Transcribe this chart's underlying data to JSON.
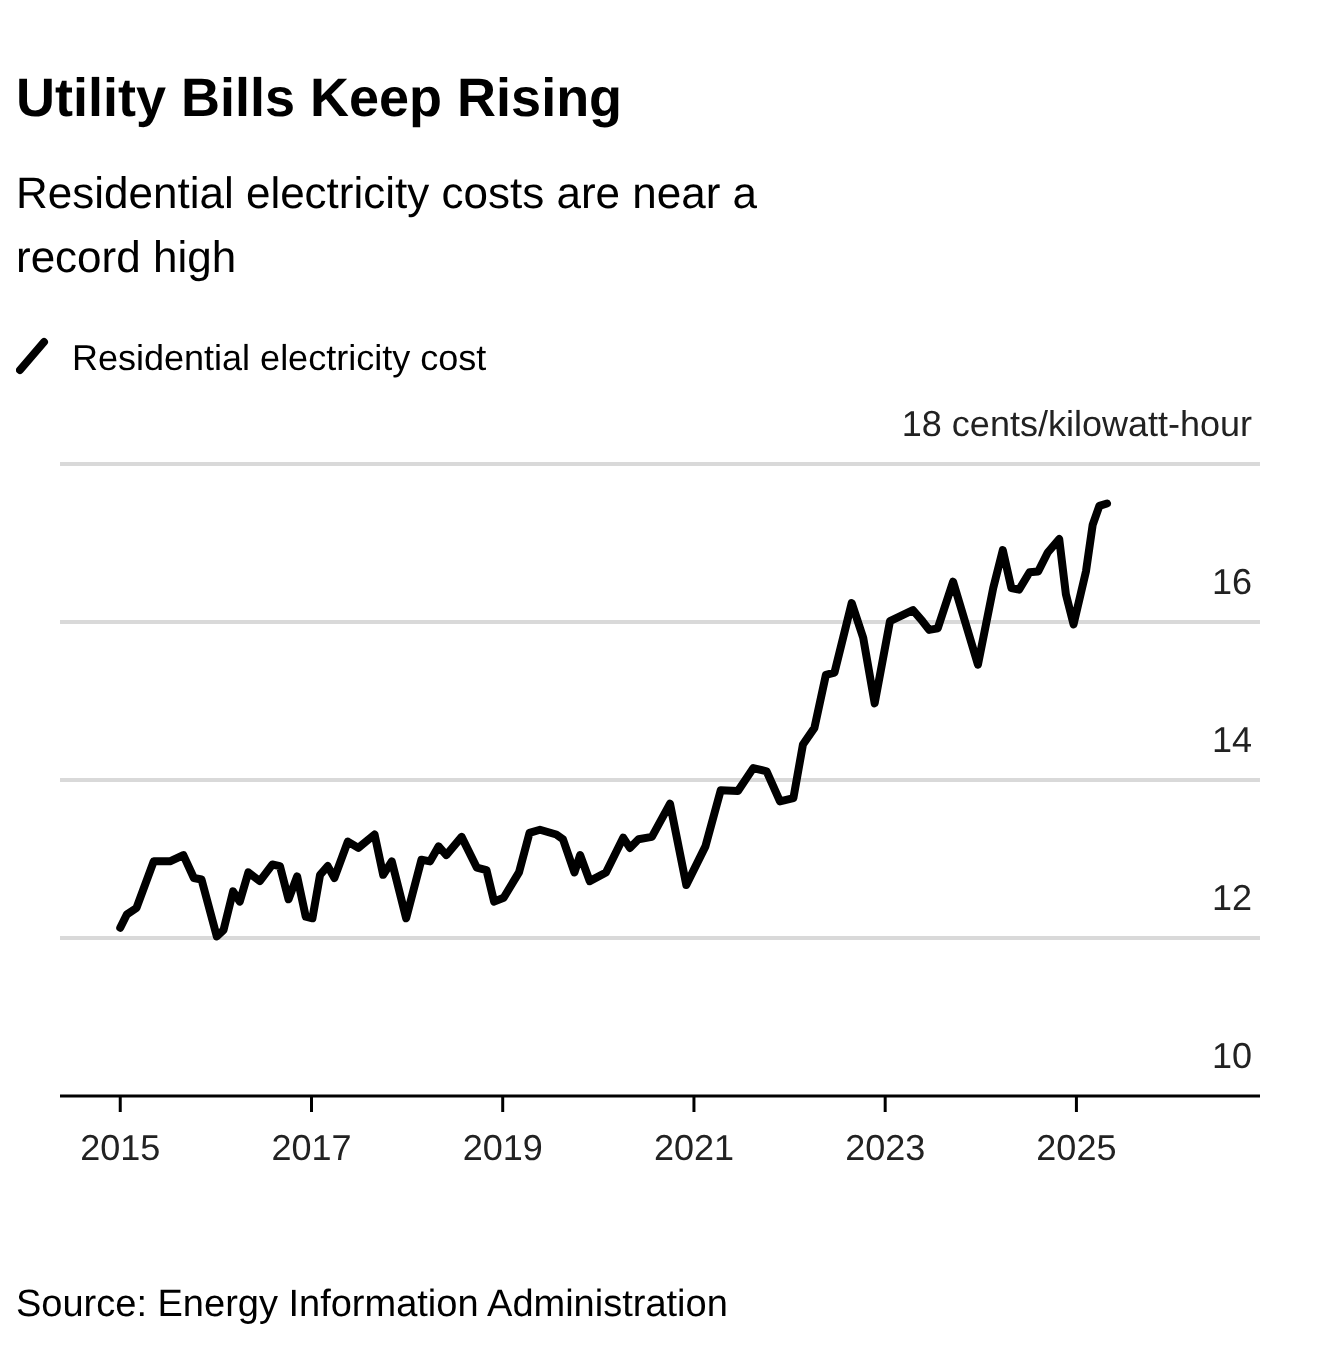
{
  "chart_data": {
    "type": "line",
    "title": "Utility Bills Keep Rising",
    "subtitle": "Residential electricity costs are near a record high",
    "series": [
      {
        "name": "Residential electricity cost",
        "color": "#000000",
        "x": [
          2015.0,
          2015.07,
          2015.17,
          2015.35,
          2015.52,
          2015.66,
          2015.77,
          2015.85,
          2016.01,
          2016.08,
          2016.18,
          2016.25,
          2016.34,
          2016.46,
          2016.59,
          2016.67,
          2016.76,
          2016.85,
          2016.94,
          2017.01,
          2017.09,
          2017.17,
          2017.24,
          2017.38,
          2017.49,
          2017.66,
          2017.75,
          2017.84,
          2017.99,
          2018.15,
          2018.24,
          2018.33,
          2018.41,
          2018.57,
          2018.73,
          2018.83,
          2018.91,
          2019.01,
          2019.17,
          2019.28,
          2019.39,
          2019.56,
          2019.63,
          2019.75,
          2019.81,
          2019.91,
          2020.08,
          2020.26,
          2020.33,
          2020.42,
          2020.56,
          2020.75,
          2020.92,
          2021.12,
          2021.28,
          2021.46,
          2021.62,
          2021.76,
          2021.9,
          2022.04,
          2022.14,
          2022.26,
          2022.38,
          2022.47,
          2022.65,
          2022.77,
          2022.89,
          2023.05,
          2023.29,
          2023.39,
          2023.46,
          2023.55,
          2023.71,
          2023.97,
          2024.13,
          2024.23,
          2024.32,
          2024.4,
          2024.51,
          2024.6,
          2024.7,
          2024.82,
          2024.89,
          2024.97,
          2025.1,
          2025.17,
          2025.24,
          2025.32
        ],
        "values": [
          12.13,
          12.3,
          12.38,
          12.97,
          12.97,
          13.05,
          12.76,
          12.74,
          12.02,
          12.1,
          12.59,
          12.46,
          12.83,
          12.72,
          12.93,
          12.91,
          12.49,
          12.78,
          12.27,
          12.25,
          12.8,
          12.91,
          12.76,
          13.22,
          13.14,
          13.31,
          12.8,
          12.97,
          12.25,
          12.99,
          12.97,
          13.16,
          13.05,
          13.28,
          12.89,
          12.86,
          12.46,
          12.51,
          12.83,
          13.33,
          13.37,
          13.31,
          13.25,
          12.83,
          13.05,
          12.72,
          12.83,
          13.27,
          13.14,
          13.25,
          13.28,
          13.7,
          12.67,
          13.16,
          13.87,
          13.86,
          14.15,
          14.11,
          13.73,
          13.77,
          14.45,
          14.66,
          15.33,
          15.36,
          16.24,
          15.8,
          14.97,
          16.01,
          16.15,
          16.01,
          15.9,
          15.92,
          16.51,
          15.46,
          16.43,
          16.91,
          16.43,
          16.41,
          16.63,
          16.64,
          16.88,
          17.05,
          16.35,
          15.97,
          16.64,
          17.23,
          17.47,
          17.5
        ]
      }
    ],
    "xlim": [
      2014.37,
      2026.92
    ],
    "xticks": [
      2015,
      2017,
      2019,
      2021,
      2023,
      2025
    ],
    "ylim": [
      10,
      18
    ],
    "yticks": [
      10,
      12,
      14,
      16,
      {
        "value": 18,
        "label": "18 cents/kilowatt-hour"
      }
    ],
    "grid": "y",
    "legend": "top left",
    "line_style": "solid",
    "marker": "none",
    "annotations": [
      "Source: Energy Information Administration"
    ]
  }
}
